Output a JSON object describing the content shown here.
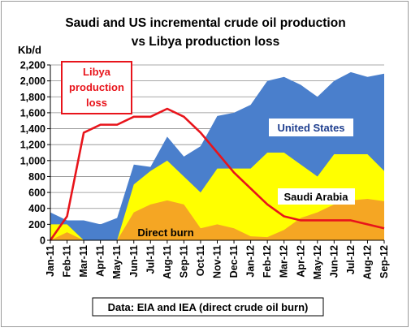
{
  "chart_data": {
    "type": "area",
    "title_line1": "Saudi and US incremental crude oil production",
    "title_line2": "vs Libya production loss",
    "ylabel": "Kb/d",
    "xlabel": "",
    "ylim": [
      0,
      2200
    ],
    "yticks": [
      0,
      200,
      400,
      600,
      800,
      1000,
      1200,
      1400,
      1600,
      1800,
      2000,
      2200
    ],
    "ytick_labels": [
      "0",
      "200",
      "400",
      "600",
      "800",
      "1,000",
      "1,200",
      "1,400",
      "1,600",
      "1,800",
      "2,000",
      "2,200"
    ],
    "categories": [
      "Jan-11",
      "Feb-11",
      "Mar-11",
      "Apr-11",
      "May-11",
      "Jun-11",
      "Jul-11",
      "Aug-11",
      "Sep-11",
      "Oct-11",
      "Nov-11",
      "Dec-11",
      "Jan-12",
      "Feb-12",
      "Mar-12",
      "Apr-12",
      "May-12",
      "Jun-12",
      "Jul-12",
      "Aug-12",
      "Sep-12"
    ],
    "grid": true,
    "series": [
      {
        "name": "Direct burn",
        "kind": "area",
        "color": "#f5a623",
        "values": [
          0,
          100,
          0,
          0,
          0,
          350,
          450,
          500,
          450,
          150,
          200,
          150,
          50,
          40,
          130,
          280,
          350,
          450,
          500,
          520,
          490
        ]
      },
      {
        "name": "Saudi Arabia",
        "kind": "area",
        "color": "#ffff00",
        "values": [
          200,
          200,
          0,
          0,
          0,
          700,
          870,
          1000,
          800,
          600,
          900,
          900,
          900,
          1100,
          1100,
          950,
          800,
          1080,
          1080,
          1080,
          870
        ]
      },
      {
        "name": "United States",
        "kind": "area",
        "color": "#4a7fcc",
        "values": [
          350,
          250,
          250,
          200,
          280,
          950,
          920,
          1300,
          1050,
          1180,
          1560,
          1600,
          1700,
          2000,
          2050,
          1950,
          1800,
          2000,
          2110,
          2050,
          2090
        ]
      },
      {
        "name": "Libya production loss",
        "kind": "line",
        "color": "#e8141b",
        "values": [
          0,
          300,
          1350,
          1450,
          1450,
          1550,
          1550,
          1650,
          1550,
          1350,
          1100,
          850,
          650,
          450,
          300,
          250,
          250,
          250,
          250,
          200,
          150
        ]
      }
    ],
    "labels": {
      "libya": [
        "Libya",
        "production",
        "loss"
      ],
      "us": "United States",
      "saudi": "Saudi Arabia",
      "burn": "Direct burn"
    },
    "source": "Data: EIA and IEA (direct crude oil burn)"
  }
}
